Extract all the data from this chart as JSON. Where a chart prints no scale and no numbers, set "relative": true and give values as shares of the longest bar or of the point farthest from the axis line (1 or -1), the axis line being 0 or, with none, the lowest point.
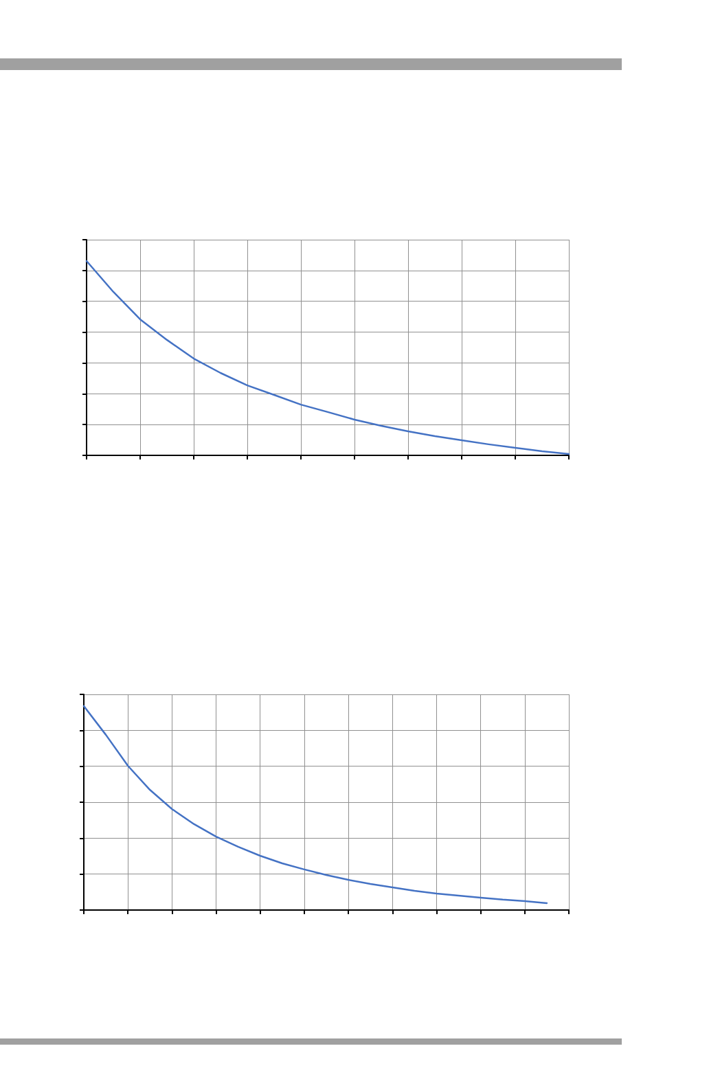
{
  "chart_data": [
    {
      "type": "line",
      "relative": true,
      "grid": true,
      "marker": "none",
      "line_style": "solid",
      "categories": [
        null,
        null,
        null,
        null,
        null,
        null,
        null,
        null,
        null,
        null,
        null,
        null,
        null,
        null,
        null,
        null,
        null,
        null,
        null
      ],
      "series": [
        {
          "color": "#4472c4",
          "values": [
            1,
            0.841,
            0.7,
            0.594,
            0.498,
            0.424,
            0.36,
            0.311,
            0.261,
            0.223,
            0.184,
            0.152,
            0.124,
            0.099,
            0.078,
            0.057,
            0.039,
            0.021,
            0.007
          ]
        }
      ]
    },
    {
      "type": "line",
      "relative": true,
      "grid": true,
      "marker": "none",
      "line_style": "solid",
      "categories": [
        null,
        null,
        null,
        null,
        null,
        null,
        null,
        null,
        null,
        null,
        null,
        null,
        null,
        null,
        null,
        null,
        null,
        null,
        null,
        null,
        null,
        null,
        null
      ],
      "series": [
        {
          "color": "#4472c4",
          "values": [
            1,
            0.859,
            0.707,
            0.589,
            0.495,
            0.421,
            0.36,
            0.31,
            0.266,
            0.229,
            0.199,
            0.172,
            0.148,
            0.128,
            0.111,
            0.094,
            0.081,
            0.071,
            0.061,
            0.051,
            0.044,
            0.034,
            null
          ]
        }
      ]
    }
  ]
}
